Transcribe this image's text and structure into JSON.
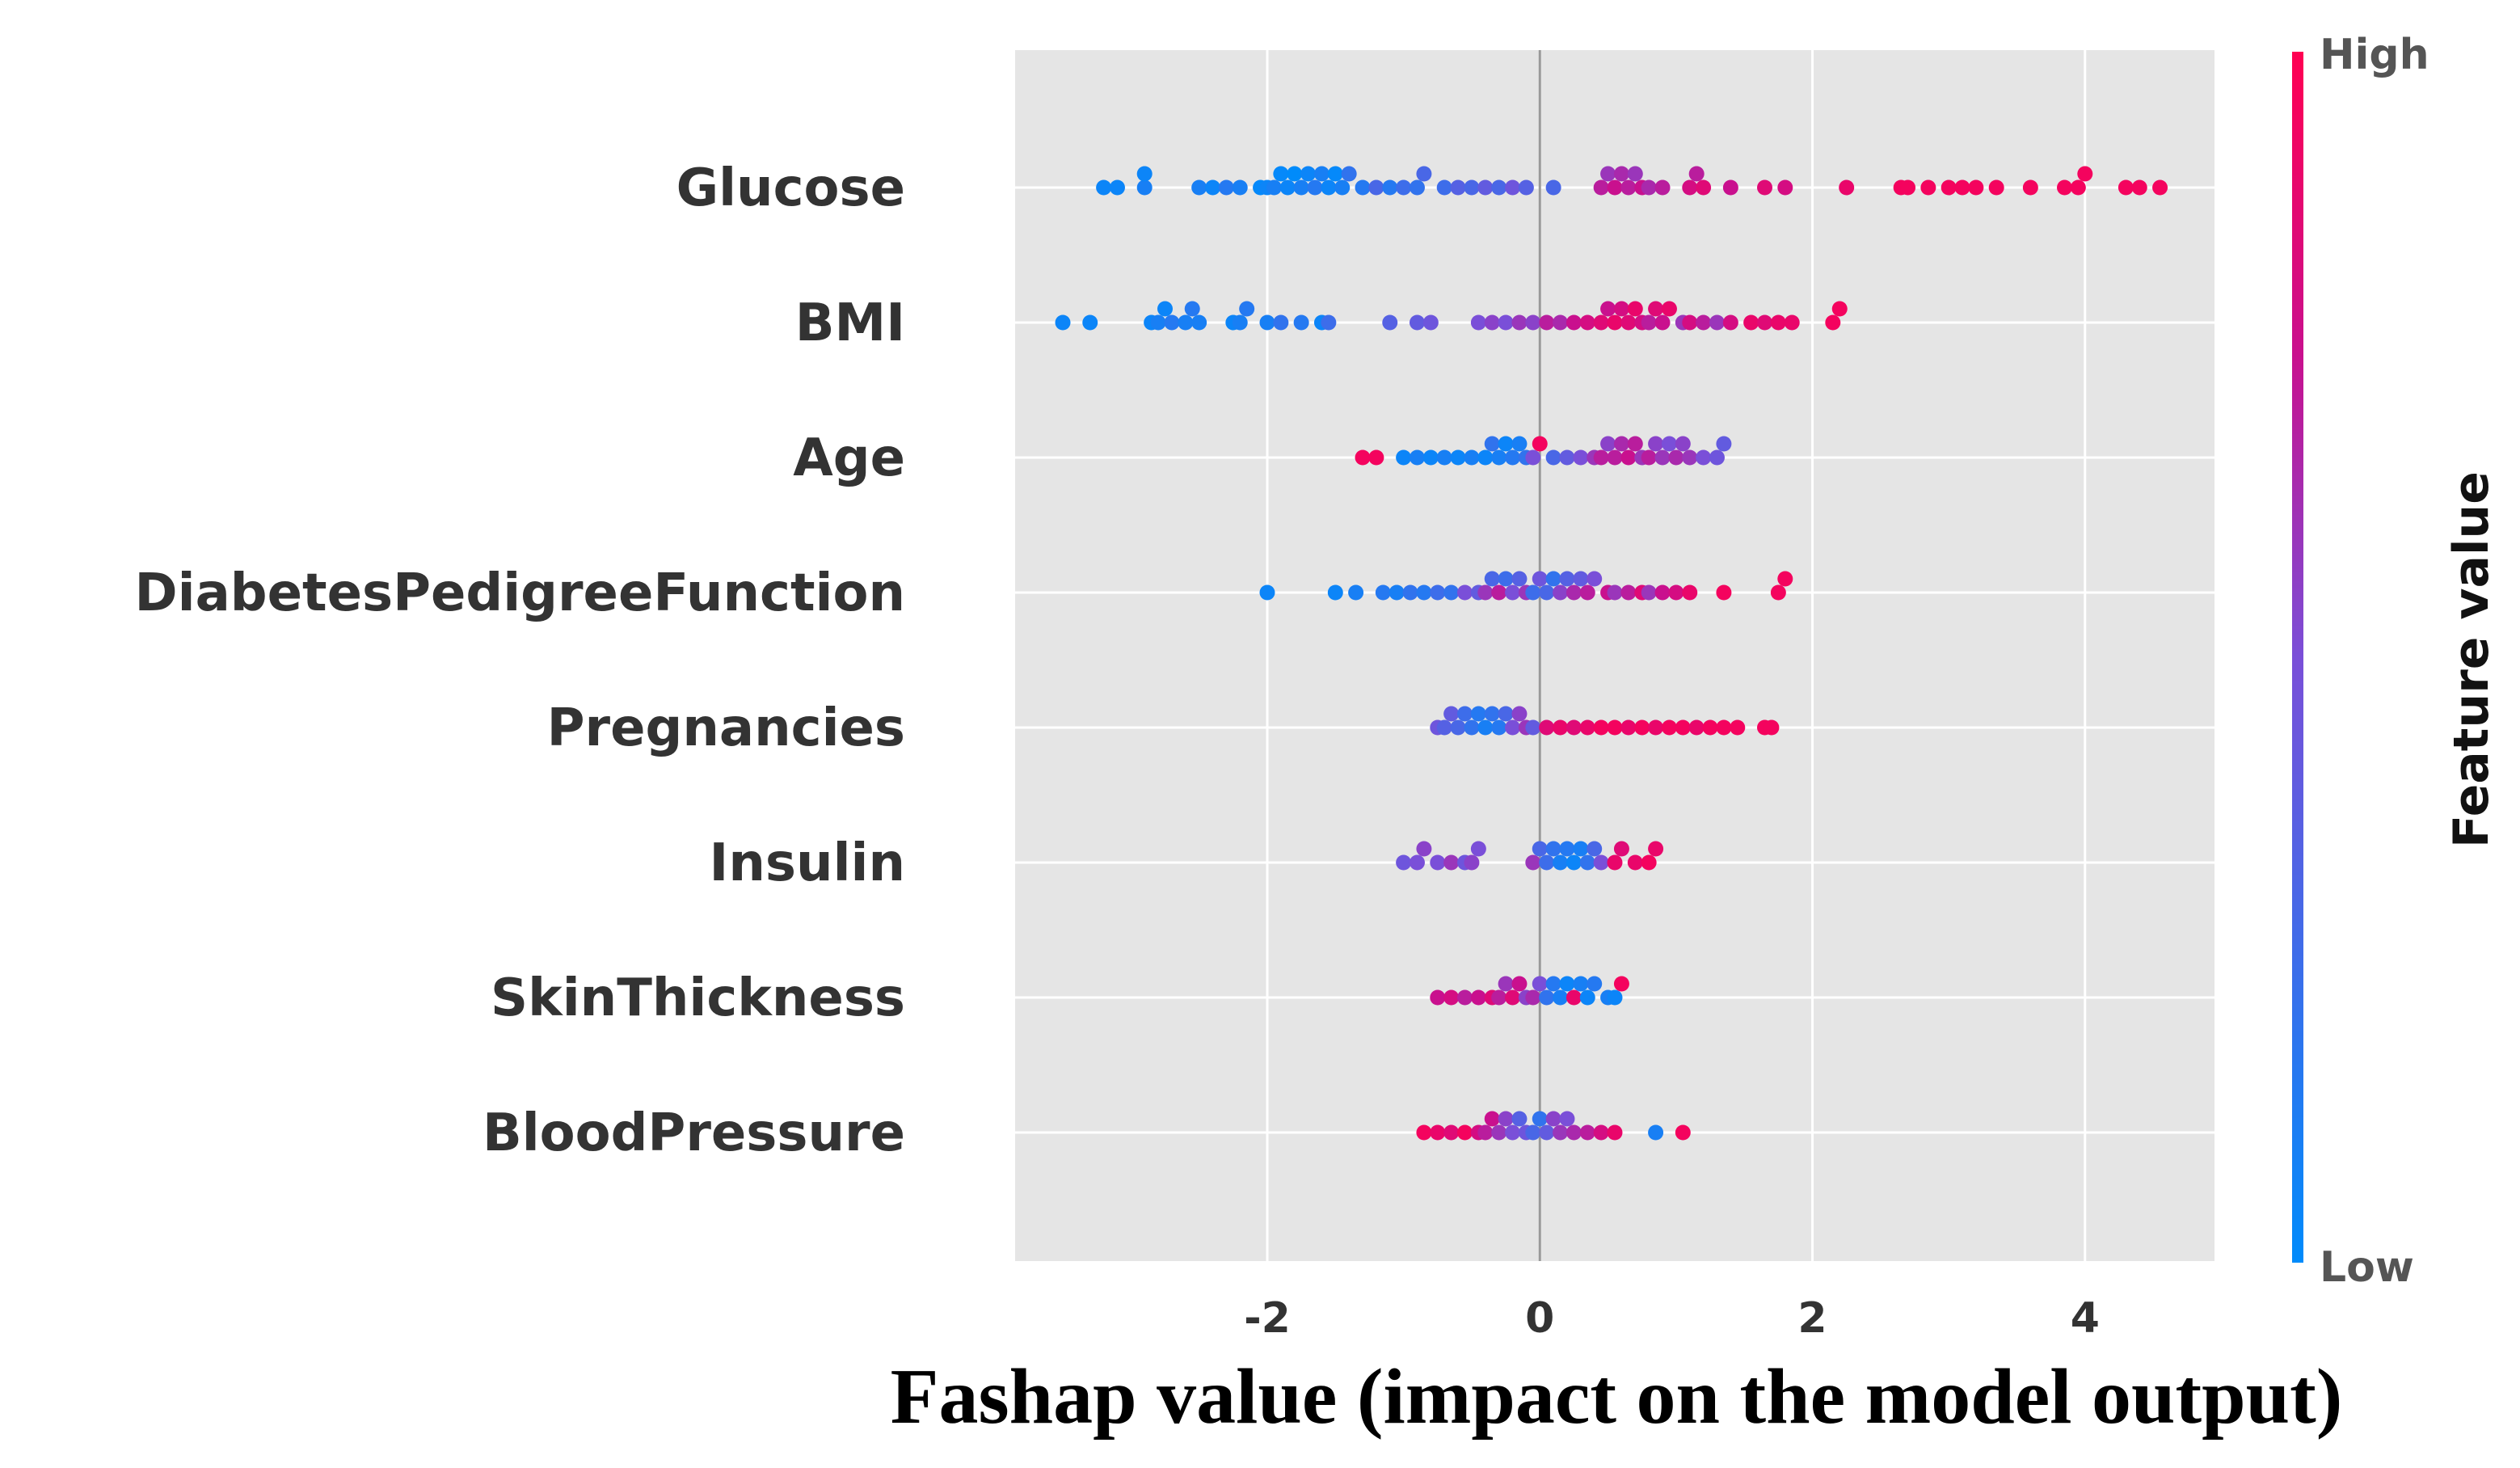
{
  "chart_data": {
    "type": "scatter",
    "subtype": "beeswarm-summary",
    "xlabel": "Fashap value (impact on the model output)",
    "xlim": [
      -3.85,
      4.95
    ],
    "xticks": [
      -2,
      0,
      2,
      4
    ],
    "xtick_labels": [
      "-2",
      "0",
      "2",
      "4"
    ],
    "grid": true,
    "background": "#e5e5e5",
    "colorbar": {
      "label": "Feature value",
      "high_label": "High",
      "low_label": "Low",
      "low_color": "#008bfb",
      "high_color": "#ff0052"
    },
    "features": [
      "Glucose",
      "BMI",
      "Age",
      "DiabetesPedigreeFunction",
      "Pregnancies",
      "Insulin",
      "SkinThickness",
      "BloodPressure"
    ],
    "series": [
      {
        "feature": "Glucose",
        "points": [
          [
            -3.2,
            0.05
          ],
          [
            -3.1,
            0.05
          ],
          [
            -2.9,
            0.1
          ],
          [
            -2.9,
            0.05
          ],
          [
            -2.5,
            0.1
          ],
          [
            -2.4,
            0.05
          ],
          [
            -2.3,
            0.15
          ],
          [
            -2.2,
            0.1
          ],
          [
            -2.05,
            0.02
          ],
          [
            -2.0,
            0.05
          ],
          [
            -1.95,
            0.1
          ],
          [
            -1.9,
            0.02
          ],
          [
            -1.85,
            0.05
          ],
          [
            -1.8,
            0.0
          ],
          [
            -1.75,
            0.1
          ],
          [
            -1.7,
            0.05
          ],
          [
            -1.65,
            0.15
          ],
          [
            -1.6,
            0.1
          ],
          [
            -1.55,
            0.05
          ],
          [
            -1.5,
            0.02
          ],
          [
            -1.45,
            0.1
          ],
          [
            -1.4,
            0.2
          ],
          [
            -1.3,
            0.15
          ],
          [
            -1.2,
            0.3
          ],
          [
            -1.1,
            0.15
          ],
          [
            -1.0,
            0.25
          ],
          [
            -0.9,
            0.2
          ],
          [
            -0.85,
            0.3
          ],
          [
            -0.7,
            0.25
          ],
          [
            -0.6,
            0.35
          ],
          [
            -0.5,
            0.3
          ],
          [
            -0.4,
            0.4
          ],
          [
            -0.3,
            0.3
          ],
          [
            -0.2,
            0.45
          ],
          [
            -0.1,
            0.35
          ],
          [
            0.1,
            0.3
          ],
          [
            0.45,
            0.7
          ],
          [
            0.5,
            0.6
          ],
          [
            0.55,
            0.75
          ],
          [
            0.6,
            0.65
          ],
          [
            0.65,
            0.7
          ],
          [
            0.7,
            0.6
          ],
          [
            0.75,
            0.75
          ],
          [
            0.8,
            0.65
          ],
          [
            0.9,
            0.7
          ],
          [
            1.1,
            0.8
          ],
          [
            1.15,
            0.7
          ],
          [
            1.2,
            0.85
          ],
          [
            1.4,
            0.75
          ],
          [
            1.65,
            0.85
          ],
          [
            1.8,
            0.8
          ],
          [
            2.25,
            0.9
          ],
          [
            2.65,
            0.95
          ],
          [
            2.7,
            0.95
          ],
          [
            2.85,
            0.95
          ],
          [
            3.0,
            0.95
          ],
          [
            3.1,
            0.95
          ],
          [
            3.2,
            0.95
          ],
          [
            3.35,
            0.95
          ],
          [
            3.6,
            0.95
          ],
          [
            3.85,
            0.95
          ],
          [
            3.95,
            0.95
          ],
          [
            4.0,
            0.95
          ],
          [
            4.3,
            0.95
          ],
          [
            4.4,
            0.95
          ],
          [
            4.55,
            0.95
          ]
        ]
      },
      {
        "feature": "BMI",
        "points": [
          [
            -3.5,
            0.05
          ],
          [
            -3.3,
            0.05
          ],
          [
            -2.85,
            0.05
          ],
          [
            -2.8,
            0.1
          ],
          [
            -2.75,
            0.05
          ],
          [
            -2.7,
            0.15
          ],
          [
            -2.6,
            0.1
          ],
          [
            -2.55,
            0.15
          ],
          [
            -2.5,
            0.1
          ],
          [
            -2.25,
            0.05
          ],
          [
            -2.2,
            0.1
          ],
          [
            -2.15,
            0.15
          ],
          [
            -2.0,
            0.1
          ],
          [
            -1.9,
            0.2
          ],
          [
            -1.75,
            0.15
          ],
          [
            -1.6,
            0.05
          ],
          [
            -1.55,
            0.25
          ],
          [
            -1.1,
            0.35
          ],
          [
            -0.9,
            0.4
          ],
          [
            -0.8,
            0.45
          ],
          [
            -0.45,
            0.5
          ],
          [
            -0.35,
            0.55
          ],
          [
            -0.25,
            0.5
          ],
          [
            -0.15,
            0.6
          ],
          [
            -0.05,
            0.55
          ],
          [
            0.05,
            0.7
          ],
          [
            0.15,
            0.65
          ],
          [
            0.25,
            0.75
          ],
          [
            0.35,
            0.8
          ],
          [
            0.45,
            0.85
          ],
          [
            0.5,
            0.75
          ],
          [
            0.55,
            0.9
          ],
          [
            0.6,
            0.8
          ],
          [
            0.65,
            0.85
          ],
          [
            0.7,
            0.9
          ],
          [
            0.75,
            0.8
          ],
          [
            0.8,
            0.7
          ],
          [
            0.85,
            0.85
          ],
          [
            0.9,
            0.75
          ],
          [
            0.95,
            0.9
          ],
          [
            1.05,
            0.6
          ],
          [
            1.1,
            0.8
          ],
          [
            1.2,
            0.7
          ],
          [
            1.3,
            0.6
          ],
          [
            1.4,
            0.8
          ],
          [
            1.55,
            0.9
          ],
          [
            1.65,
            0.85
          ],
          [
            1.75,
            0.9
          ],
          [
            1.85,
            0.9
          ],
          [
            2.15,
            0.95
          ],
          [
            2.2,
            0.95
          ]
        ]
      },
      {
        "feature": "Age",
        "points": [
          [
            -1.3,
            0.95
          ],
          [
            -1.2,
            0.95
          ],
          [
            -1.0,
            0.05
          ],
          [
            -0.9,
            0.1
          ],
          [
            -0.8,
            0.05
          ],
          [
            -0.7,
            0.1
          ],
          [
            -0.6,
            0.05
          ],
          [
            -0.5,
            0.1
          ],
          [
            -0.4,
            0.05
          ],
          [
            -0.35,
            0.2
          ],
          [
            -0.3,
            0.1
          ],
          [
            -0.25,
            0.05
          ],
          [
            -0.2,
            0.15
          ],
          [
            -0.15,
            0.1
          ],
          [
            -0.1,
            0.2
          ],
          [
            -0.05,
            0.5
          ],
          [
            0.0,
            0.95
          ],
          [
            0.1,
            0.3
          ],
          [
            0.2,
            0.4
          ],
          [
            0.3,
            0.5
          ],
          [
            0.4,
            0.6
          ],
          [
            0.45,
            0.7
          ],
          [
            0.5,
            0.55
          ],
          [
            0.55,
            0.7
          ],
          [
            0.6,
            0.65
          ],
          [
            0.65,
            0.75
          ],
          [
            0.7,
            0.7
          ],
          [
            0.75,
            0.6
          ],
          [
            0.8,
            0.7
          ],
          [
            0.85,
            0.55
          ],
          [
            0.9,
            0.6
          ],
          [
            0.95,
            0.5
          ],
          [
            1.0,
            0.65
          ],
          [
            1.05,
            0.55
          ],
          [
            1.1,
            0.6
          ],
          [
            1.2,
            0.5
          ],
          [
            1.3,
            0.45
          ],
          [
            1.35,
            0.4
          ]
        ]
      },
      {
        "feature": "DiabetesPedigreeFunction",
        "points": [
          [
            -2.0,
            0.05
          ],
          [
            -1.5,
            0.05
          ],
          [
            -1.35,
            0.1
          ],
          [
            -1.15,
            0.15
          ],
          [
            -1.05,
            0.1
          ],
          [
            -0.95,
            0.2
          ],
          [
            -0.85,
            0.15
          ],
          [
            -0.75,
            0.25
          ],
          [
            -0.65,
            0.2
          ],
          [
            -0.55,
            0.5
          ],
          [
            -0.45,
            0.4
          ],
          [
            -0.4,
            0.6
          ],
          [
            -0.35,
            0.3
          ],
          [
            -0.3,
            0.7
          ],
          [
            -0.25,
            0.25
          ],
          [
            -0.2,
            0.5
          ],
          [
            -0.15,
            0.35
          ],
          [
            -0.1,
            0.6
          ],
          [
            -0.05,
            0.25
          ],
          [
            0.0,
            0.45
          ],
          [
            0.05,
            0.3
          ],
          [
            0.1,
            0.2
          ],
          [
            0.15,
            0.55
          ],
          [
            0.2,
            0.35
          ],
          [
            0.25,
            0.65
          ],
          [
            0.3,
            0.4
          ],
          [
            0.35,
            0.7
          ],
          [
            0.4,
            0.5
          ],
          [
            0.5,
            0.75
          ],
          [
            0.55,
            0.6
          ],
          [
            0.65,
            0.7
          ],
          [
            0.75,
            0.85
          ],
          [
            0.8,
            0.6
          ],
          [
            0.9,
            0.75
          ],
          [
            1.0,
            0.8
          ],
          [
            1.1,
            0.9
          ],
          [
            1.35,
            0.95
          ],
          [
            1.75,
            0.95
          ],
          [
            1.8,
            0.95
          ]
        ]
      },
      {
        "feature": "Pregnancies",
        "points": [
          [
            -0.75,
            0.45
          ],
          [
            -0.7,
            0.35
          ],
          [
            -0.65,
            0.4
          ],
          [
            -0.6,
            0.3
          ],
          [
            -0.55,
            0.25
          ],
          [
            -0.5,
            0.2
          ],
          [
            -0.45,
            0.15
          ],
          [
            -0.4,
            0.1
          ],
          [
            -0.35,
            0.2
          ],
          [
            -0.3,
            0.15
          ],
          [
            -0.25,
            0.3
          ],
          [
            -0.2,
            0.5
          ],
          [
            -0.15,
            0.55
          ],
          [
            -0.1,
            0.6
          ],
          [
            -0.05,
            0.4
          ],
          [
            0.05,
            0.85
          ],
          [
            0.15,
            0.9
          ],
          [
            0.25,
            0.85
          ],
          [
            0.35,
            0.9
          ],
          [
            0.45,
            0.95
          ],
          [
            0.55,
            0.95
          ],
          [
            0.65,
            0.9
          ],
          [
            0.75,
            0.95
          ],
          [
            0.85,
            0.9
          ],
          [
            0.95,
            0.95
          ],
          [
            1.05,
            0.95
          ],
          [
            1.15,
            0.9
          ],
          [
            1.25,
            0.95
          ],
          [
            1.35,
            0.95
          ],
          [
            1.45,
            0.95
          ],
          [
            1.65,
            0.95
          ],
          [
            1.7,
            0.95
          ]
        ]
      },
      {
        "feature": "Insulin",
        "points": [
          [
            -1.0,
            0.45
          ],
          [
            -0.9,
            0.5
          ],
          [
            -0.85,
            0.55
          ],
          [
            -0.75,
            0.5
          ],
          [
            -0.65,
            0.6
          ],
          [
            -0.55,
            0.45
          ],
          [
            -0.5,
            0.55
          ],
          [
            -0.45,
            0.5
          ],
          [
            -0.05,
            0.6
          ],
          [
            0.0,
            0.3
          ],
          [
            0.05,
            0.25
          ],
          [
            0.1,
            0.2
          ],
          [
            0.15,
            0.1
          ],
          [
            0.2,
            0.15
          ],
          [
            0.25,
            0.05
          ],
          [
            0.3,
            0.1
          ],
          [
            0.35,
            0.2
          ],
          [
            0.4,
            0.3
          ],
          [
            0.45,
            0.5
          ],
          [
            0.55,
            0.9
          ],
          [
            0.6,
            0.85
          ],
          [
            0.7,
            0.9
          ],
          [
            0.8,
            0.95
          ],
          [
            0.85,
            0.9
          ]
        ]
      },
      {
        "feature": "SkinThickness",
        "points": [
          [
            -0.75,
            0.75
          ],
          [
            -0.65,
            0.8
          ],
          [
            -0.55,
            0.7
          ],
          [
            -0.45,
            0.75
          ],
          [
            -0.35,
            0.85
          ],
          [
            -0.3,
            0.7
          ],
          [
            -0.25,
            0.6
          ],
          [
            -0.2,
            0.85
          ],
          [
            -0.15,
            0.75
          ],
          [
            -0.1,
            0.55
          ],
          [
            -0.05,
            0.65
          ],
          [
            0.0,
            0.5
          ],
          [
            0.05,
            0.2
          ],
          [
            0.1,
            0.15
          ],
          [
            0.15,
            0.1
          ],
          [
            0.2,
            0.05
          ],
          [
            0.25,
            0.9
          ],
          [
            0.3,
            0.1
          ],
          [
            0.35,
            0.05
          ],
          [
            0.4,
            0.15
          ],
          [
            0.5,
            0.1
          ],
          [
            0.55,
            0.05
          ],
          [
            0.6,
            0.95
          ]
        ]
      },
      {
        "feature": "BloodPressure",
        "points": [
          [
            -0.85,
            0.95
          ],
          [
            -0.75,
            0.9
          ],
          [
            -0.65,
            0.85
          ],
          [
            -0.55,
            0.95
          ],
          [
            -0.45,
            0.8
          ],
          [
            -0.4,
            0.7
          ],
          [
            -0.35,
            0.75
          ],
          [
            -0.3,
            0.6
          ],
          [
            -0.25,
            0.55
          ],
          [
            -0.2,
            0.5
          ],
          [
            -0.15,
            0.35
          ],
          [
            -0.1,
            0.45
          ],
          [
            -0.05,
            0.3
          ],
          [
            0.0,
            0.2
          ],
          [
            0.05,
            0.4
          ],
          [
            0.1,
            0.55
          ],
          [
            0.15,
            0.6
          ],
          [
            0.2,
            0.5
          ],
          [
            0.25,
            0.65
          ],
          [
            0.35,
            0.7
          ],
          [
            0.45,
            0.8
          ],
          [
            0.55,
            0.9
          ],
          [
            0.85,
            0.1
          ],
          [
            1.05,
            0.95
          ]
        ]
      }
    ]
  }
}
